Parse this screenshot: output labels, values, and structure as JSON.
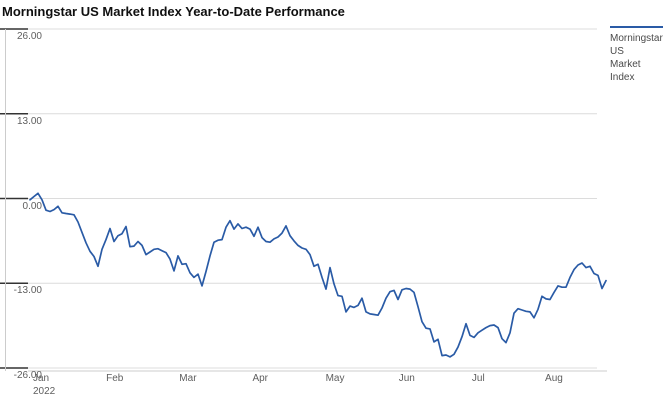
{
  "title": "Morningstar US Market Index Year-to-Date Performance",
  "legend": {
    "series_label": "Morningstar US Market Index",
    "label_lines": [
      "Morningstar",
      "US",
      "Market",
      "Index"
    ]
  },
  "colors": {
    "line": "#2a5ba6",
    "grid": "#dcdcdc",
    "tick": "#333333",
    "axis_line": "#cccccc",
    "axis_text": "#5e5e5e",
    "title_text": "#0f0f0f",
    "background": "#ffffff"
  },
  "chart_data": {
    "type": "line",
    "title": "Morningstar US Market Index Year-to-Date Performance",
    "unit": "percent YTD return",
    "grid": true,
    "legend_position": "right",
    "x_axis": {
      "tick_labels": [
        "Jan",
        "Feb",
        "Mar",
        "Apr",
        "May",
        "Jun",
        "Jul",
        "Aug"
      ],
      "sub_label": "2022"
    },
    "y_axis": {
      "tick_labels": [
        "26.00",
        "13.00",
        "0.00",
        "-13.00",
        "-26.00"
      ],
      "tick_values": [
        26,
        13,
        0,
        -13,
        -26
      ],
      "min": -26,
      "max": 26
    },
    "series": [
      {
        "name": "Morningstar US Market Index",
        "color": "#2a5ba6",
        "values": [
          -0.2,
          0.3,
          0.8,
          -0.2,
          -1.8,
          -2.0,
          -1.7,
          -1.2,
          -2.2,
          -2.3,
          -2.4,
          -2.5,
          -3.6,
          -5.2,
          -6.8,
          -8.1,
          -8.9,
          -10.4,
          -7.8,
          -6.3,
          -4.6,
          -6.6,
          -5.7,
          -5.4,
          -4.3,
          -7.4,
          -7.3,
          -6.6,
          -7.2,
          -8.6,
          -8.2,
          -7.8,
          -7.7,
          -8.0,
          -8.3,
          -9.3,
          -11.1,
          -8.8,
          -10.1,
          -10.0,
          -11.4,
          -12.1,
          -11.6,
          -13.4,
          -11.2,
          -8.8,
          -6.7,
          -6.4,
          -6.3,
          -4.4,
          -3.4,
          -4.7,
          -3.9,
          -4.6,
          -4.4,
          -4.7,
          -5.8,
          -4.4,
          -6.0,
          -6.6,
          -6.7,
          -6.2,
          -5.9,
          -5.3,
          -4.2,
          -5.7,
          -6.5,
          -7.2,
          -7.6,
          -7.8,
          -8.6,
          -10.4,
          -10.1,
          -12.1,
          -13.9,
          -10.6,
          -13.1,
          -14.9,
          -15.0,
          -17.4,
          -16.5,
          -16.7,
          -16.4,
          -15.3,
          -17.4,
          -17.7,
          -17.8,
          -17.9,
          -16.8,
          -15.3,
          -14.3,
          -14.1,
          -15.5,
          -14.0,
          -13.8,
          -13.9,
          -14.4,
          -16.6,
          -18.9,
          -19.9,
          -20.0,
          -22.0,
          -21.6,
          -24.1,
          -24.0,
          -24.3,
          -23.9,
          -22.8,
          -21.2,
          -19.2,
          -21.0,
          -21.3,
          -20.6,
          -20.2,
          -19.8,
          -19.5,
          -19.4,
          -19.8,
          -21.5,
          -22.1,
          -20.6,
          -17.6,
          -16.9,
          -17.1,
          -17.3,
          -17.4,
          -18.3,
          -17.0,
          -15.0,
          -15.4,
          -15.5,
          -14.4,
          -13.4,
          -13.6,
          -13.6,
          -12.1,
          -10.9,
          -10.2,
          -9.9,
          -10.6,
          -10.4,
          -11.5,
          -11.8,
          -13.8,
          -12.6
        ]
      }
    ]
  }
}
